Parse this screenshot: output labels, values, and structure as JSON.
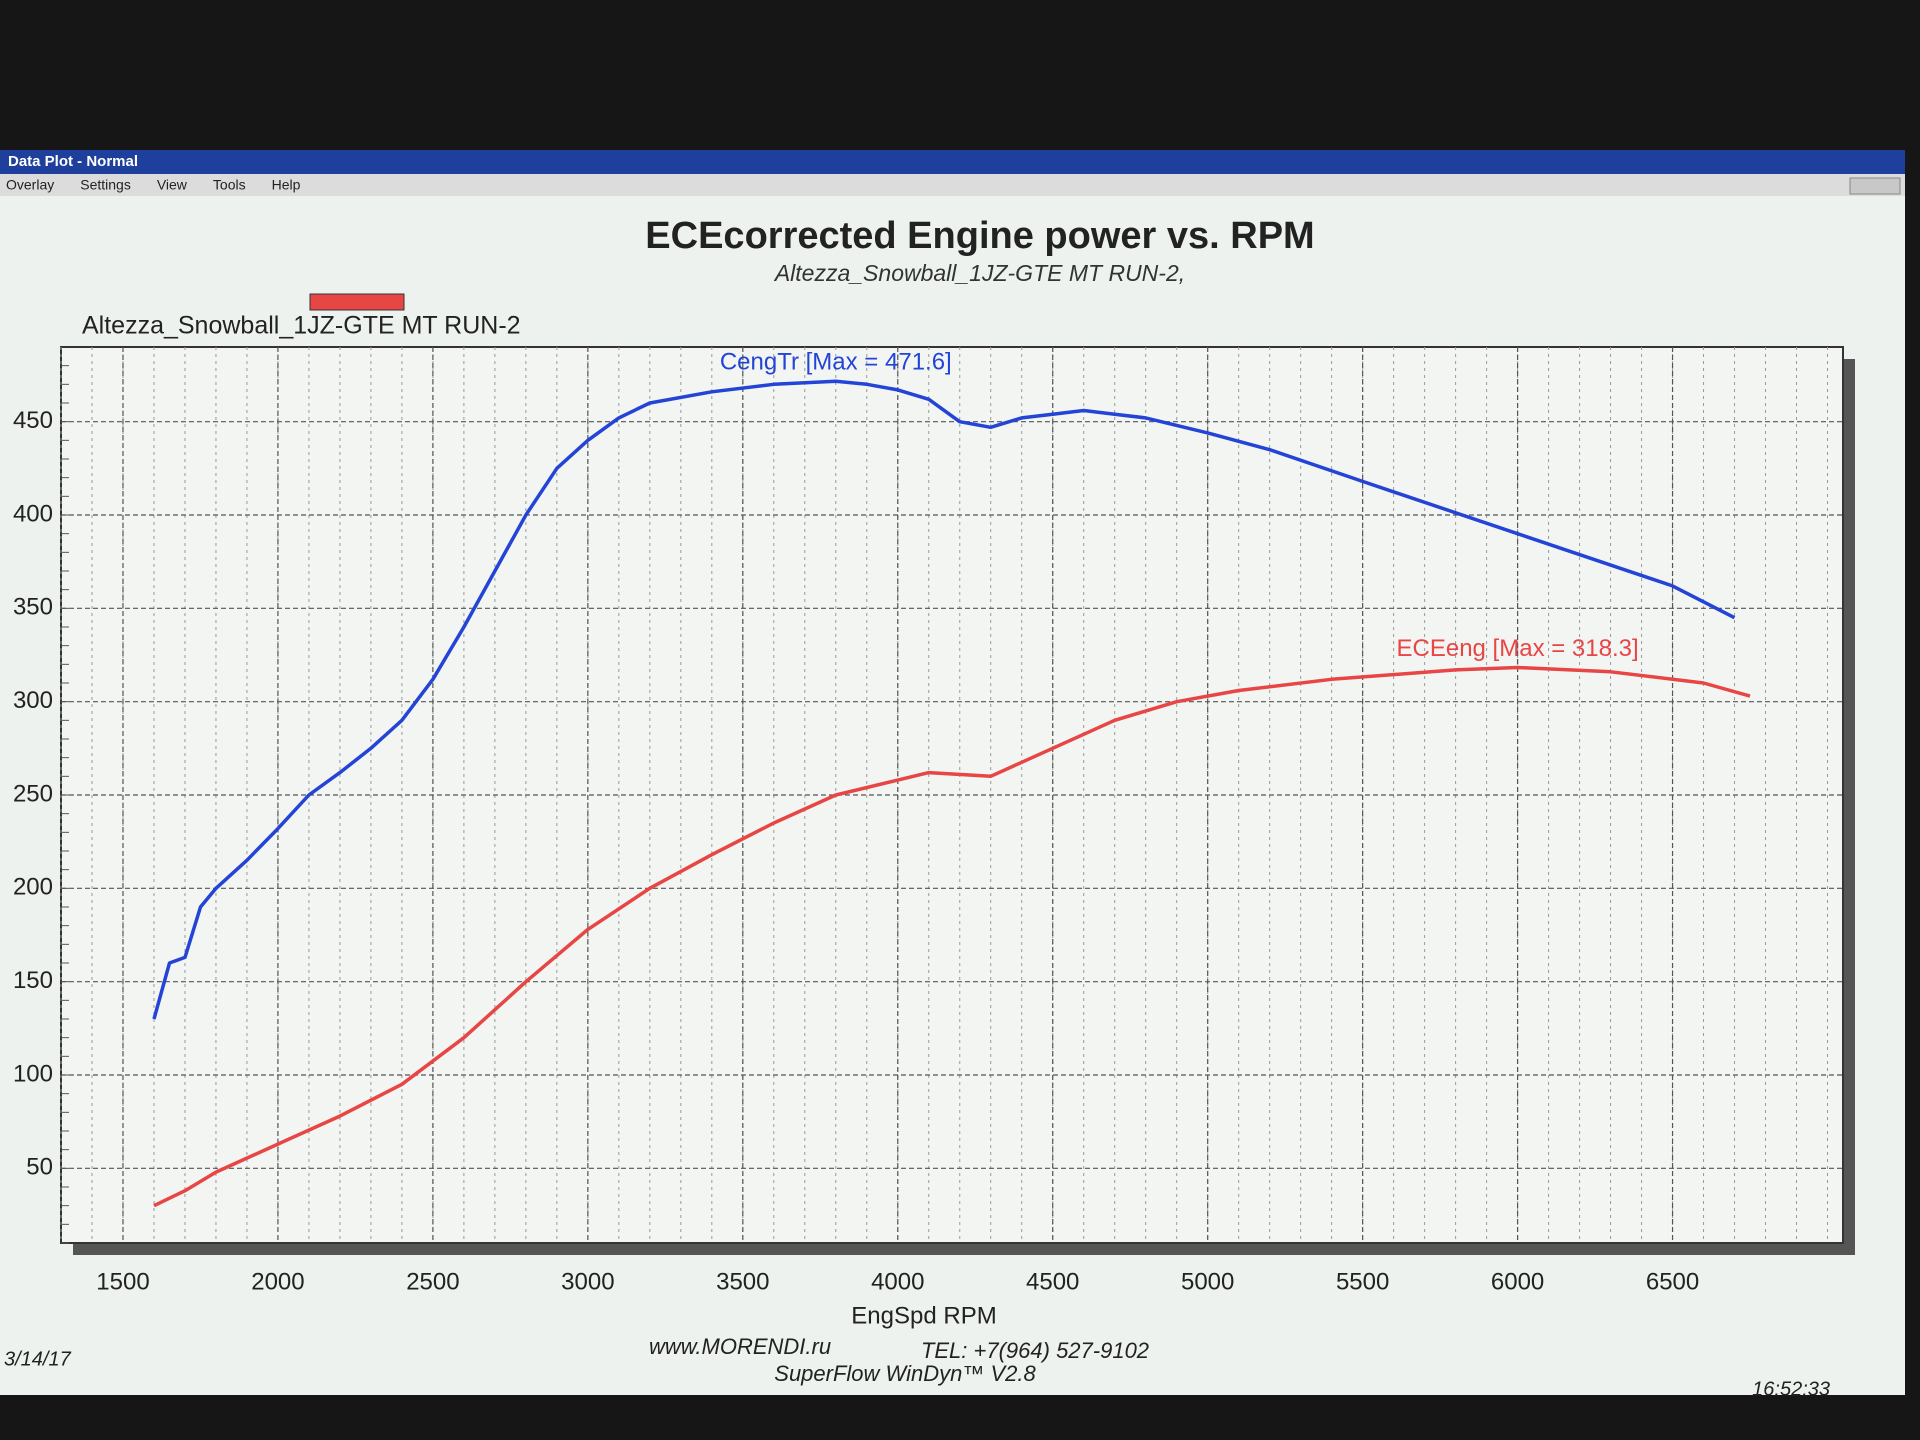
{
  "window": {
    "title": "Data Plot - Normal",
    "menu": [
      "Overlay",
      "Settings",
      "View",
      "Tools",
      "Help"
    ]
  },
  "chart_data": {
    "type": "line",
    "title": "ECEcorrected Engine power vs. RPM",
    "subtitle": "Altezza_Snowball_1JZ-GTE MT RUN-2,",
    "legend": {
      "name": "Altezza_Snowball_1JZ-GTE MT RUN-2",
      "color": "#e84545"
    },
    "x_label": "EngSpd  RPM",
    "xlim": [
      1300,
      7050
    ],
    "xticks": [
      1500,
      2000,
      2500,
      3000,
      3500,
      4000,
      4500,
      5000,
      5500,
      6000,
      6500
    ],
    "ylim": [
      10,
      490
    ],
    "yticks": [
      50,
      100,
      150,
      200,
      250,
      300,
      350,
      400,
      450
    ],
    "grid": true,
    "series": [
      {
        "label": "CengTr [Max = 471.6]",
        "color": "#2344d6",
        "x": [
          1600,
          1650,
          1700,
          1750,
          1800,
          1900,
          2000,
          2100,
          2200,
          2300,
          2400,
          2500,
          2600,
          2700,
          2800,
          2900,
          3000,
          3100,
          3200,
          3400,
          3600,
          3800,
          3900,
          4000,
          4100,
          4200,
          4300,
          4400,
          4500,
          4600,
          4700,
          4800,
          5000,
          5200,
          5500,
          6000,
          6500,
          6700
        ],
        "values": [
          130,
          160,
          163,
          190,
          200,
          215,
          232,
          250,
          262,
          275,
          290,
          312,
          340,
          370,
          400,
          425,
          440,
          452,
          460,
          466,
          470,
          471.6,
          470,
          467,
          462,
          450,
          447,
          452,
          454,
          456,
          454,
          452,
          444,
          435,
          418,
          390,
          362,
          345
        ]
      },
      {
        "label": "ECEeng [Max = 318.3]",
        "color": "#e84545",
        "x": [
          1600,
          1700,
          1800,
          2000,
          2200,
          2400,
          2600,
          2800,
          3000,
          3200,
          3400,
          3600,
          3800,
          4000,
          4100,
          4300,
          4500,
          4700,
          4900,
          5100,
          5400,
          5800,
          6000,
          6300,
          6600,
          6750
        ],
        "values": [
          30,
          38,
          48,
          63,
          78,
          95,
          120,
          150,
          178,
          200,
          218,
          235,
          250,
          258,
          262,
          260,
          275,
          290,
          300,
          306,
          312,
          317,
          318.3,
          316,
          310,
          303
        ]
      }
    ],
    "footer": {
      "website": "www.MORENDI.ru",
      "phone": "TEL: +7(964) 527-9102",
      "software": "SuperFlow WinDyn™ V2.8",
      "date": "3/14/17",
      "time": "16:52:33"
    }
  }
}
